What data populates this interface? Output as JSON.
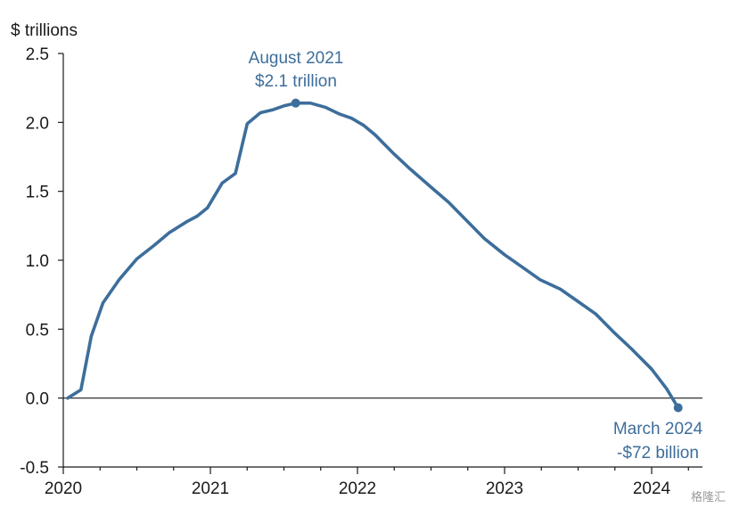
{
  "chart_data": {
    "type": "line",
    "ylabel": "$ trillions",
    "xlabel": "",
    "ylim": [
      -0.5,
      2.5
    ],
    "xlim": [
      2020.0,
      2024.45
    ],
    "y_ticks": [
      "2.5",
      "2.0",
      "1.5",
      "1.0",
      "0.5",
      "0.0",
      "-0.5"
    ],
    "y_tick_values": [
      2.5,
      2.0,
      1.5,
      1.0,
      0.5,
      0.0,
      -0.5
    ],
    "x_ticks": [
      "2020",
      "2021",
      "2022",
      "2023",
      "2024"
    ],
    "x_tick_values": [
      2020,
      2021,
      2022,
      2023,
      2024
    ],
    "grid": false,
    "line_color": "#3d6e9b",
    "series": [
      {
        "x": [
          2020.03,
          2020.12,
          2020.19,
          2020.27,
          2020.38,
          2020.5,
          2020.62,
          2020.72,
          2020.84,
          2020.91,
          2020.98,
          2021.08,
          2021.17,
          2021.25,
          2021.34,
          2021.42,
          2021.5,
          2021.58,
          2021.68,
          2021.78,
          2021.88,
          2021.96,
          2022.04,
          2022.12,
          2022.24,
          2022.36,
          2022.5,
          2022.62,
          2022.74,
          2022.86,
          2023.0,
          2023.12,
          2023.24,
          2023.38,
          2023.5,
          2023.62,
          2023.74,
          2023.86,
          2024.0,
          2024.1,
          2024.18
        ],
        "y": [
          0.0,
          0.06,
          0.45,
          0.69,
          0.86,
          1.01,
          1.11,
          1.2,
          1.28,
          1.32,
          1.38,
          1.56,
          1.63,
          1.99,
          2.07,
          2.09,
          2.12,
          2.14,
          2.14,
          2.11,
          2.06,
          2.03,
          1.98,
          1.91,
          1.78,
          1.66,
          1.53,
          1.42,
          1.29,
          1.16,
          1.04,
          0.95,
          0.86,
          0.79,
          0.7,
          0.61,
          0.48,
          0.36,
          0.21,
          0.07,
          -0.07
        ]
      }
    ],
    "highlight_points": [
      {
        "x": 2021.58,
        "y": 2.14,
        "color": "#3d6e9b"
      },
      {
        "x": 2024.18,
        "y": -0.07,
        "color": "#3d6e9b"
      }
    ],
    "annotations": [
      {
        "lines": [
          "August 2021",
          "$2.1 trillion"
        ],
        "color": "#3d6e9b"
      },
      {
        "lines": [
          "March 2024",
          "-$72 billion"
        ],
        "color": "#3d6e9b"
      }
    ]
  },
  "watermark": "格隆汇"
}
